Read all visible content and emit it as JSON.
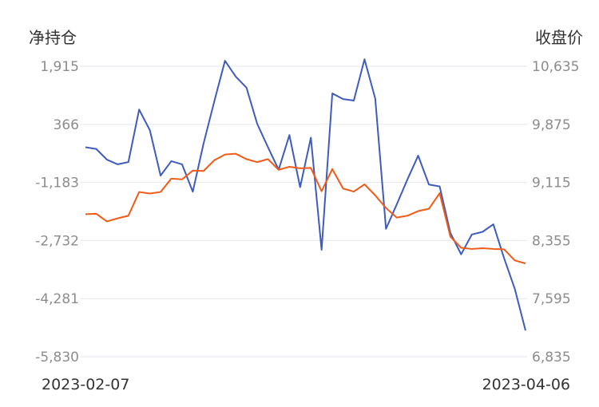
{
  "chart_data": {
    "type": "line",
    "y_left_label": "净持仓",
    "y_right_label": "收盘价",
    "y_left_ticks": [
      "1,915",
      "366",
      "-1,183",
      "-2,732",
      "-4,281",
      "-5,830"
    ],
    "y_right_ticks": [
      "10,635",
      "9,875",
      "9,115",
      "8,355",
      "7,595",
      "6,835"
    ],
    "y_left_range": [
      -5830,
      1915
    ],
    "y_right_range": [
      6835,
      10635
    ],
    "x_start_label": "2023-02-07",
    "x_end_label": "2023-04-06",
    "grid": true,
    "colors": {
      "left_series": "#3f5bbf",
      "right_series": "#f25a16"
    },
    "series": [
      {
        "axis": "left",
        "values": [
          -245,
          -290,
          -575,
          -700,
          -640,
          760,
          210,
          -1000,
          -615,
          -700,
          -1430,
          -150,
          975,
          2060,
          1640,
          1345,
          380,
          -240,
          -845,
          80,
          -1310,
          10,
          -2980,
          1190,
          1040,
          1000,
          2100,
          1050,
          -2420,
          -1770,
          -1100,
          -470,
          -1240,
          -1290,
          -2530,
          -3100,
          -2570,
          -2500,
          -2300,
          -3200,
          -4020,
          -5130
        ]
      },
      {
        "axis": "right",
        "values": [
          8700,
          8705,
          8605,
          8645,
          8680,
          8990,
          8970,
          8990,
          9165,
          9155,
          9270,
          9265,
          9405,
          9480,
          9490,
          9420,
          9380,
          9420,
          9280,
          9320,
          9300,
          9305,
          9000,
          9290,
          9035,
          8995,
          9090,
          8945,
          8780,
          8655,
          8680,
          8740,
          8770,
          8975,
          8405,
          8260,
          8245,
          8255,
          8245,
          8240,
          8095,
          8055
        ]
      }
    ]
  }
}
